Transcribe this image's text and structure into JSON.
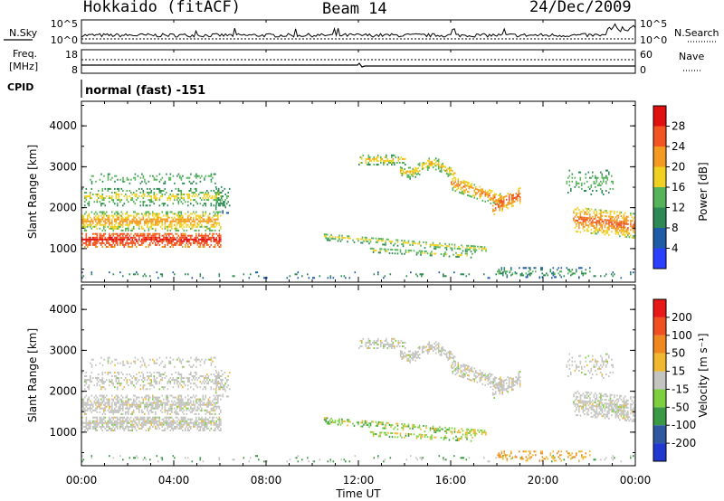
{
  "header": {
    "station": "Hokkaido (fitACF)",
    "beam": "Beam 14",
    "date": "24/Dec/2009"
  },
  "status_panels": {
    "nsky_label": "N.Sky",
    "nsearch_label": "N.Search",
    "noise_ticks": [
      "10^5",
      "10^0"
    ],
    "freq_label_line1": "Freq.",
    "freq_label_line2": "[MHz]",
    "freq_ticks": [
      "18",
      "8"
    ],
    "nave_label": "Nave",
    "nave_ticks": [
      "60",
      "0"
    ],
    "cpid_label": "CPID",
    "cpid_text": "normal (fast) -151"
  },
  "chart_data": [
    {
      "type": "heatmap",
      "name": "power",
      "title": "",
      "xlabel": "",
      "ylabel": "Slant Range [km]",
      "x_ticks": [
        "00:00",
        "04:00",
        "08:00",
        "12:00",
        "16:00",
        "20:00",
        "00:00"
      ],
      "y_ticks": [
        "1000",
        "2000",
        "3000",
        "4000"
      ],
      "xlim": [
        0,
        24
      ],
      "ylim": [
        180,
        4600
      ],
      "colorbar": {
        "label": "Power [dB]",
        "ticks": [
          "4",
          "8",
          "12",
          "16",
          "20",
          "24",
          "28"
        ],
        "colors": [
          "#2a40ff",
          "#205ba8",
          "#2e8a55",
          "#55b45a",
          "#f0d020",
          "#f29a22",
          "#f25522",
          "#e01010"
        ]
      }
    },
    {
      "type": "heatmap",
      "name": "velocity",
      "title": "",
      "xlabel": "Time UT",
      "ylabel": "Slant Range [km]",
      "x_ticks": [
        "00:00",
        "04:00",
        "08:00",
        "12:00",
        "16:00",
        "20:00",
        "00:00"
      ],
      "y_ticks": [
        "1000",
        "2000",
        "3000",
        "4000"
      ],
      "xlim": [
        0,
        24
      ],
      "ylim": [
        180,
        4600
      ],
      "colorbar": {
        "label": "Velocity [m s⁻¹]",
        "ticks": [
          "200",
          "100",
          "50",
          "15",
          "-15",
          "-50",
          "-100",
          "-200"
        ],
        "colors": [
          "#2038d0",
          "#2e58a0",
          "#3a9a44",
          "#7cd040",
          "#c4c4c0",
          "#f0b830",
          "#f08820",
          "#f05020",
          "#e81818"
        ]
      }
    }
  ]
}
